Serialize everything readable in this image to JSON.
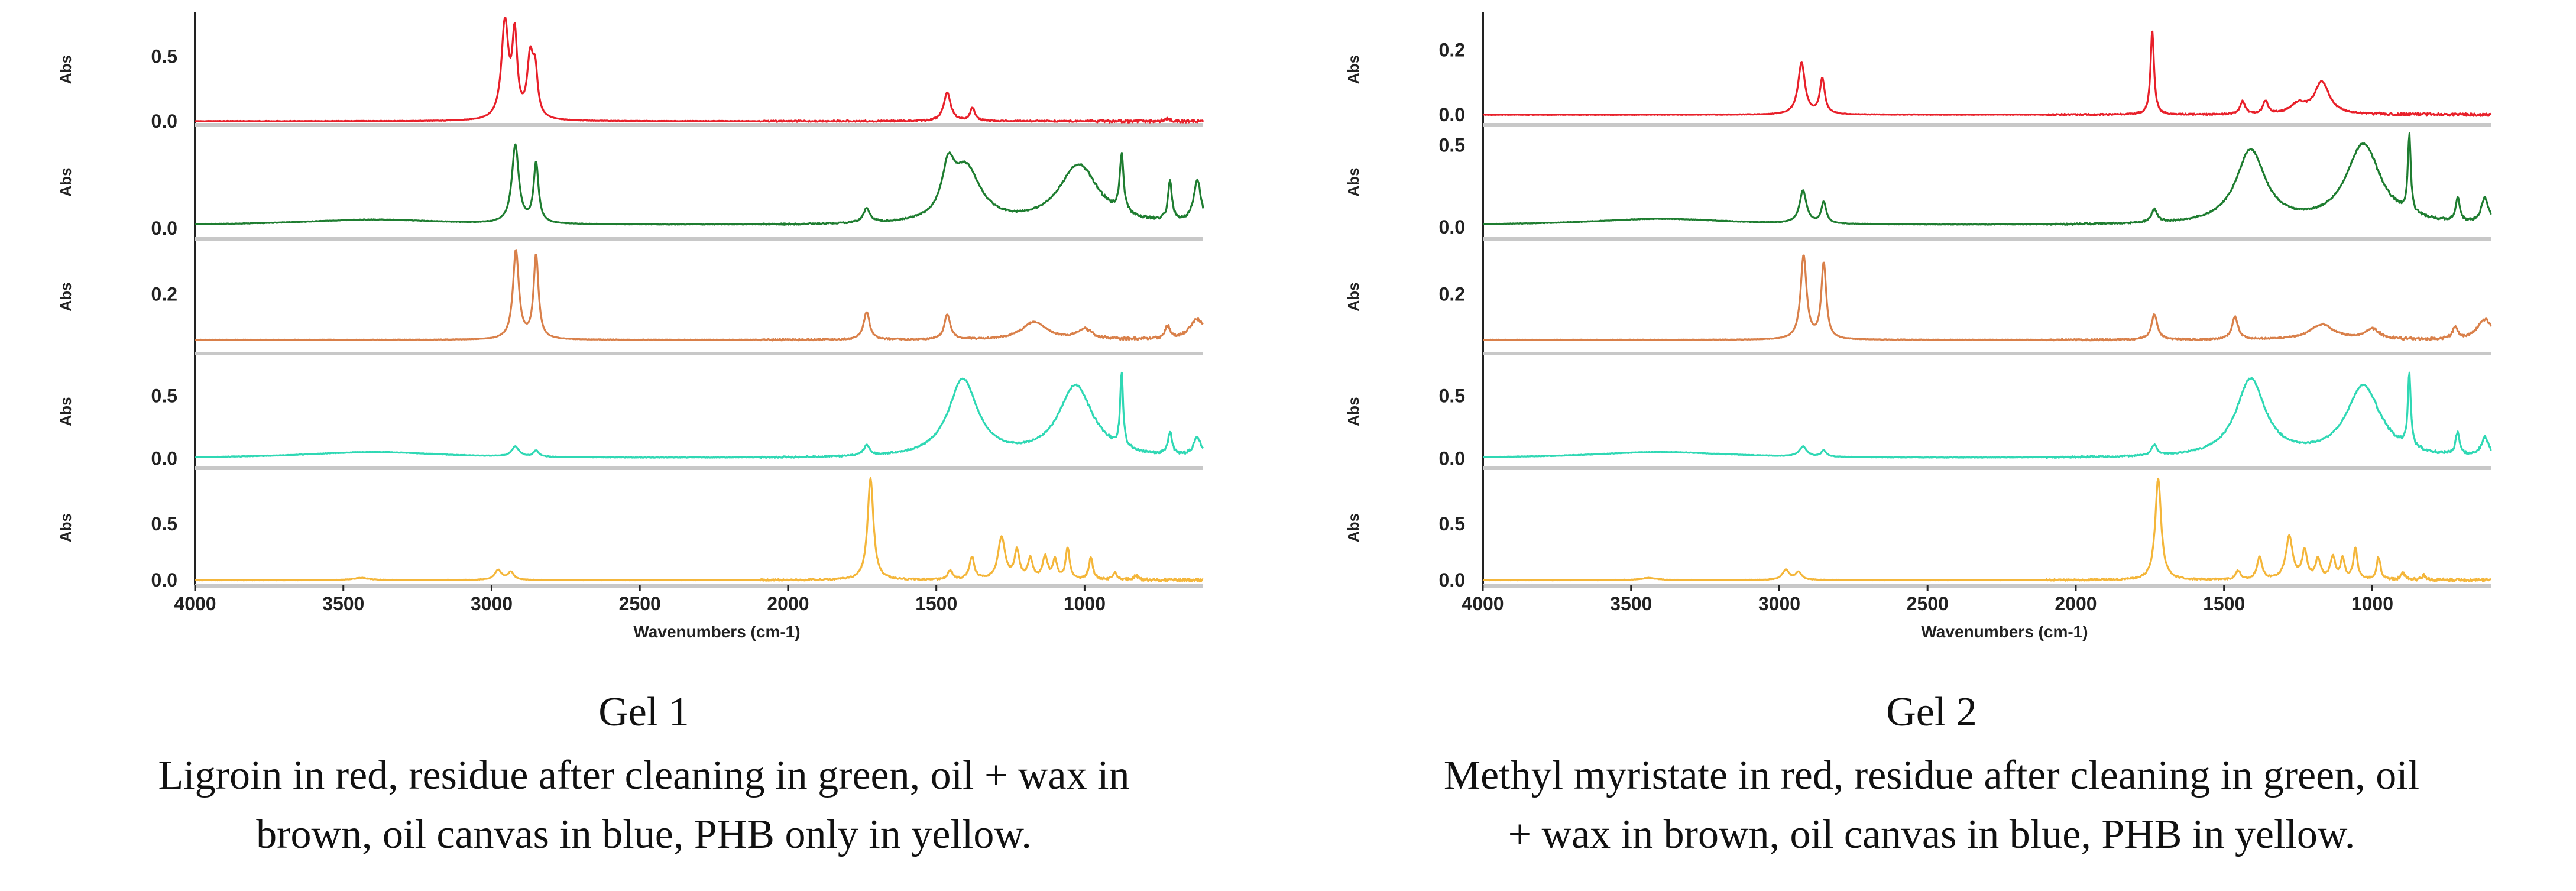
{
  "figures": [
    {
      "caption_title": "Gel 1",
      "caption_line1": "Ligroin in red, residue after cleaning in green, oil + wax in",
      "caption_line2": "brown, oil canvas in blue, PHB only in yellow."
    },
    {
      "caption_title": "Gel 2",
      "caption_line1": "Methyl myristate in red, residue after cleaning in green, oil",
      "caption_line2": "+ wax in brown, oil canvas in blue, PHB in yellow."
    }
  ],
  "chart_data": [
    {
      "type": "line",
      "title": "Gel 1",
      "xlabel": "Wavenumbers (cm-1)",
      "xlim": [
        4000,
        600
      ],
      "x_ticks": [
        "4000",
        "3500",
        "3000",
        "2500",
        "2000",
        "1500",
        "1000"
      ],
      "x_tick_values": [
        4000,
        3500,
        3000,
        2500,
        2000,
        1500,
        1000
      ],
      "series": [
        {
          "name": "Ligroin",
          "color": "#e8202a",
          "ylabel": "Abs",
          "ylim": [
            0.0,
            0.8
          ],
          "y_ticks": [
            "0.0",
            "0.5"
          ],
          "y_tick_values": [
            0.0,
            0.5
          ],
          "baseline": 0.0,
          "peaks": [
            [
              2955,
              0.75,
              14
            ],
            [
              2922,
              0.62,
              10
            ],
            [
              2870,
              0.45,
              12
            ],
            [
              2853,
              0.33,
              10
            ],
            [
              1463,
              0.22,
              14
            ],
            [
              1378,
              0.1,
              10
            ],
            [
              720,
              0.02,
              10
            ]
          ]
        },
        {
          "name": "Residue after cleaning",
          "color": "#1e7d30",
          "ylabel": "Abs",
          "ylim": [
            -0.05,
            0.7
          ],
          "y_ticks": [
            "0.0"
          ],
          "y_tick_values": [
            0.0
          ],
          "baseline": 0.02,
          "peaks": [
            [
              3400,
              0.04,
              300
            ],
            [
              2920,
              0.55,
              14
            ],
            [
              2850,
              0.42,
              10
            ],
            [
              1735,
              0.1,
              14
            ],
            [
              1460,
              0.3,
              25
            ],
            [
              1400,
              0.38,
              60
            ],
            [
              1020,
              0.42,
              80
            ],
            [
              875,
              0.4,
              8
            ],
            [
              712,
              0.28,
              8
            ],
            [
              620,
              0.3,
              15
            ]
          ]
        },
        {
          "name": "Oil + wax",
          "color": "#d9804a",
          "ylabel": "Abs",
          "ylim": [
            -0.02,
            0.4
          ],
          "y_ticks": [
            "0.2"
          ],
          "y_tick_values": [
            0.2
          ],
          "baseline": 0.02,
          "peaks": [
            [
              2918,
              0.35,
              12
            ],
            [
              2850,
              0.33,
              10
            ],
            [
              1735,
              0.11,
              12
            ],
            [
              1463,
              0.1,
              12
            ],
            [
              1170,
              0.07,
              50
            ],
            [
              1000,
              0.04,
              30
            ],
            [
              720,
              0.05,
              10
            ],
            [
              620,
              0.08,
              30
            ]
          ]
        },
        {
          "name": "Oil canvas",
          "color": "#2fd8b4",
          "ylabel": "Abs",
          "ylim": [
            -0.05,
            0.8
          ],
          "y_ticks": [
            "0.0",
            "0.5"
          ],
          "y_tick_values": [
            0.0,
            0.5
          ],
          "baseline": 0.0,
          "peaks": [
            [
              3400,
              0.05,
              300
            ],
            [
              2920,
              0.08,
              15
            ],
            [
              2850,
              0.05,
              10
            ],
            [
              1735,
              0.08,
              12
            ],
            [
              1410,
              0.62,
              60
            ],
            [
              1030,
              0.57,
              70
            ],
            [
              875,
              0.58,
              6
            ],
            [
              712,
              0.18,
              8
            ],
            [
              620,
              0.15,
              15
            ]
          ]
        },
        {
          "name": "PHB",
          "color": "#f4b63a",
          "ylabel": "Abs",
          "ylim": [
            -0.02,
            0.95
          ],
          "y_ticks": [
            "0.0",
            "0.5"
          ],
          "y_tick_values": [
            0.0,
            0.5
          ],
          "baseline": 0.0,
          "peaks": [
            [
              3440,
              0.02,
              30
            ],
            [
              2978,
              0.09,
              14
            ],
            [
              2935,
              0.07,
              12
            ],
            [
              1722,
              0.9,
              12
            ],
            [
              1453,
              0.08,
              10
            ],
            [
              1380,
              0.2,
              10
            ],
            [
              1280,
              0.38,
              14
            ],
            [
              1228,
              0.25,
              10
            ],
            [
              1183,
              0.18,
              10
            ],
            [
              1133,
              0.2,
              10
            ],
            [
              1100,
              0.18,
              8
            ],
            [
              1057,
              0.28,
              8
            ],
            [
              979,
              0.2,
              8
            ],
            [
              897,
              0.06,
              8
            ],
            [
              826,
              0.04,
              8
            ]
          ]
        }
      ]
    },
    {
      "type": "line",
      "title": "Gel 2",
      "xlabel": "Wavenumbers (cm-1)",
      "xlim": [
        4000,
        600
      ],
      "x_ticks": [
        "4000",
        "3500",
        "3000",
        "2500",
        "2000",
        "1500",
        "1000"
      ],
      "x_tick_values": [
        4000,
        3500,
        3000,
        2500,
        2000,
        1500,
        1000
      ],
      "series": [
        {
          "name": "Methyl myristate",
          "color": "#e8202a",
          "ylabel": "Abs",
          "ylim": [
            -0.02,
            0.3
          ],
          "y_ticks": [
            "0.0",
            "0.2"
          ],
          "y_tick_values": [
            0.0,
            0.2
          ],
          "baseline": 0.0,
          "peaks": [
            [
              2925,
              0.16,
              14
            ],
            [
              2855,
              0.11,
              10
            ],
            [
              1742,
              0.26,
              7
            ],
            [
              1437,
              0.04,
              10
            ],
            [
              1360,
              0.04,
              10
            ],
            [
              1250,
              0.03,
              30
            ],
            [
              1170,
              0.1,
              30
            ]
          ]
        },
        {
          "name": "Residue after cleaning",
          "color": "#1e7d30",
          "ylabel": "Abs",
          "ylim": [
            -0.05,
            0.6
          ],
          "y_ticks": [
            "0.0",
            "0.5"
          ],
          "y_tick_values": [
            0.0,
            0.5
          ],
          "baseline": 0.01,
          "peaks": [
            [
              3400,
              0.04,
              300
            ],
            [
              2920,
              0.2,
              14
            ],
            [
              2850,
              0.13,
              10
            ],
            [
              1735,
              0.08,
              12
            ],
            [
              1410,
              0.45,
              60
            ],
            [
              1030,
              0.49,
              70
            ],
            [
              875,
              0.47,
              6
            ],
            [
              712,
              0.14,
              8
            ],
            [
              620,
              0.15,
              15
            ]
          ]
        },
        {
          "name": "Oil + wax",
          "color": "#d9804a",
          "ylabel": "Abs",
          "ylim": [
            -0.02,
            0.4
          ],
          "y_ticks": [
            "0.2"
          ],
          "y_tick_values": [
            0.2
          ],
          "baseline": 0.02,
          "peaks": [
            [
              2918,
              0.33,
              12
            ],
            [
              2850,
              0.3,
              10
            ],
            [
              1735,
              0.1,
              12
            ],
            [
              1463,
              0.09,
              12
            ],
            [
              1170,
              0.06,
              50
            ],
            [
              1000,
              0.04,
              30
            ],
            [
              720,
              0.05,
              10
            ],
            [
              620,
              0.08,
              30
            ]
          ]
        },
        {
          "name": "Oil canvas",
          "color": "#2fd8b4",
          "ylabel": "Abs",
          "ylim": [
            -0.05,
            0.8
          ],
          "y_ticks": [
            "0.0",
            "0.5"
          ],
          "y_tick_values": [
            0.0,
            0.5
          ],
          "baseline": 0.0,
          "peaks": [
            [
              3400,
              0.05,
              300
            ],
            [
              2920,
              0.08,
              15
            ],
            [
              2850,
              0.05,
              10
            ],
            [
              1735,
              0.08,
              12
            ],
            [
              1410,
              0.62,
              60
            ],
            [
              1030,
              0.57,
              70
            ],
            [
              875,
              0.58,
              6
            ],
            [
              712,
              0.18,
              8
            ],
            [
              620,
              0.15,
              15
            ]
          ]
        },
        {
          "name": "PHB",
          "color": "#f4b63a",
          "ylabel": "Abs",
          "ylim": [
            -0.02,
            0.95
          ],
          "y_ticks": [
            "0.0",
            "0.5"
          ],
          "y_tick_values": [
            0.0,
            0.5
          ],
          "baseline": 0.0,
          "peaks": [
            [
              3440,
              0.02,
              30
            ],
            [
              2978,
              0.09,
              14
            ],
            [
              2935,
              0.07,
              12
            ],
            [
              1722,
              0.9,
              12
            ],
            [
              1453,
              0.08,
              10
            ],
            [
              1380,
              0.2,
              10
            ],
            [
              1280,
              0.38,
              14
            ],
            [
              1228,
              0.25,
              10
            ],
            [
              1183,
              0.18,
              10
            ],
            [
              1133,
              0.2,
              10
            ],
            [
              1100,
              0.18,
              8
            ],
            [
              1057,
              0.28,
              8
            ],
            [
              979,
              0.2,
              8
            ],
            [
              897,
              0.06,
              8
            ],
            [
              826,
              0.04,
              8
            ]
          ]
        }
      ]
    }
  ]
}
